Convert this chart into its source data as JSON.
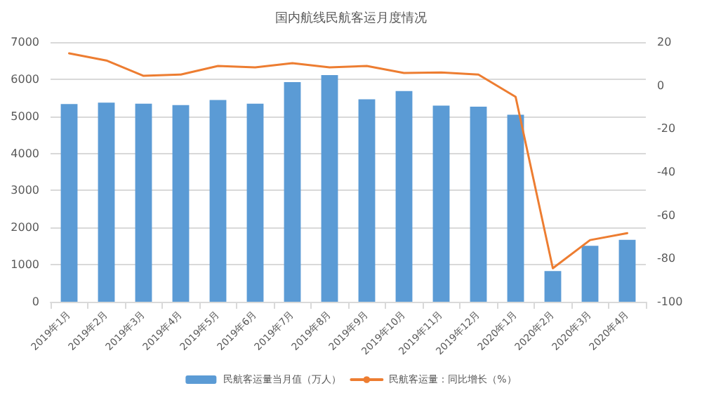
{
  "chart_data": {
    "type": "bar",
    "title": "国内航线民航客运月度情况",
    "categories": [
      "2019年1月",
      "2019年2月",
      "2019年3月",
      "2019年4月",
      "2019年5月",
      "2019年6月",
      "2019年7月",
      "2019年8月",
      "2019年9月",
      "2019年10月",
      "2019年11月",
      "2019年12月",
      "2020年1月",
      "2020年2月",
      "2020年3月",
      "2020年4月"
    ],
    "series": [
      {
        "name": "民航客运量当月值（万人）",
        "color": "#5b9bd5",
        "values": [
          5330,
          5370,
          5340,
          5300,
          5440,
          5340,
          5920,
          6110,
          5460,
          5680,
          5290,
          5260,
          5040,
          830,
          1510,
          1670
        ]
      },
      {
        "name": "民航客运量：同比增长（%）",
        "type": "line",
        "axis": "y2",
        "color": "#ed7d31",
        "values": [
          14.8,
          11.5,
          4.4,
          5,
          9,
          8.3,
          10.3,
          8.3,
          9,
          5.7,
          6,
          5,
          -5.3,
          -84.5,
          -71.5,
          -68.3
        ]
      }
    ],
    "ylim": [
      0,
      7000
    ],
    "yticks": [
      0,
      1000,
      2000,
      3000,
      4000,
      5000,
      6000,
      7000
    ],
    "y2lim": [
      -100,
      20
    ],
    "y2ticks": [
      -100,
      -80,
      -60,
      -40,
      -20,
      0,
      20
    ],
    "grid": "y",
    "legend": "bottom",
    "marker": "none",
    "line_style": "solid"
  }
}
